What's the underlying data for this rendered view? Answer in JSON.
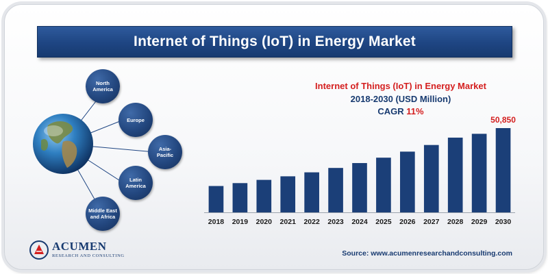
{
  "banner_title": "Internet of Things (IoT) in Energy Market",
  "regions": [
    "North America",
    "Europe",
    "Asia-Pacific",
    "Latin America",
    "Middle East and Africa"
  ],
  "chart_data": {
    "type": "bar",
    "title": "Internet of Things (IoT) in Energy Market",
    "subtitle": "2018-2030",
    "unit": "(USD Million)",
    "cagr_label": "CAGR",
    "cagr_value": "11%",
    "categories": [
      "2018",
      "2019",
      "2020",
      "2021",
      "2022",
      "2023",
      "2024",
      "2025",
      "2026",
      "2027",
      "2028",
      "2029",
      "2030"
    ],
    "values": [
      15900,
      17650,
      19600,
      21750,
      24150,
      26800,
      29750,
      33000,
      36650,
      40650,
      45100,
      47400,
      50850
    ],
    "data_labels": [
      {
        "category": "2030",
        "text": "50,850"
      }
    ],
    "ylim": [
      0,
      50850
    ],
    "grid": false,
    "bar_color": "#1b3f78"
  },
  "logo": {
    "name": "ACUMEN",
    "tagline": "RESEARCH AND CONSULTING"
  },
  "source": "Source: www.acumenresearchandconsulting.com"
}
